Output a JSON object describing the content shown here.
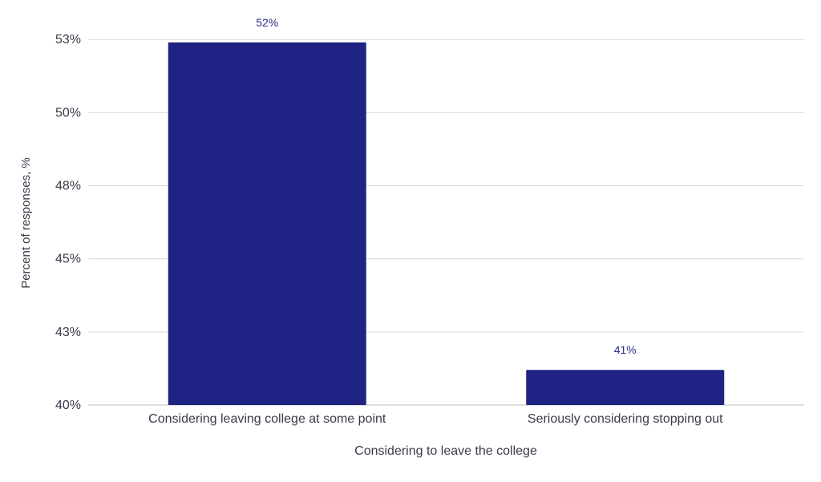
{
  "chart_data": {
    "type": "bar",
    "categories": [
      "Considering leaving college at some point",
      "Seriously considering stopping out"
    ],
    "values": [
      52.4,
      41.2
    ],
    "data_labels": [
      "52%",
      "41%"
    ],
    "title": "",
    "xlabel": "Considering to leave the college",
    "ylabel": "Percent of responses, %",
    "ylim": [
      40,
      53
    ],
    "yticks": [
      40,
      42.5,
      45,
      47.5,
      50,
      52.5
    ],
    "ytick_labels": [
      "40%",
      "43%",
      "45%",
      "48%",
      "50%",
      "53%"
    ],
    "grid": true,
    "legend": "none",
    "colors": {
      "bar": "#1f2383",
      "grid": "#dcdcdc",
      "text": "#3a3a4a",
      "label": "#2b2f86"
    }
  }
}
